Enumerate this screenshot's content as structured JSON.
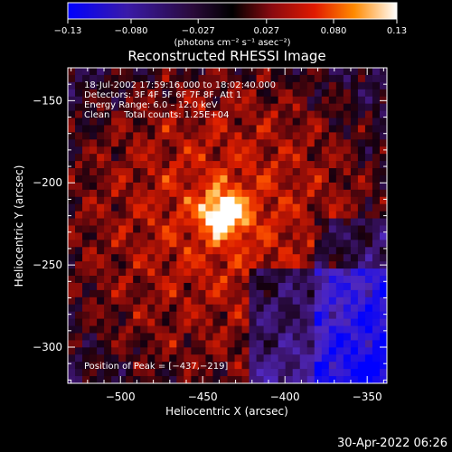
{
  "chart_data": {
    "type": "heatmap",
    "title": "Reconstructed RHESSI Image",
    "xlabel": "Heliocentric X (arcsec)",
    "ylabel": "Heliocentric Y (arcsec)",
    "xlim": [
      -532,
      -338
    ],
    "ylim": [
      -322,
      -130
    ],
    "x_ticks": [
      -500,
      -450,
      -400,
      -350
    ],
    "y_ticks": [
      -300,
      -250,
      -200,
      -150
    ],
    "x_tick_labels": [
      "−500",
      "−450",
      "−400",
      "−350"
    ],
    "y_tick_labels": [
      "−300",
      "−250",
      "−200",
      "−150"
    ],
    "colorbar": {
      "min": -0.13,
      "max": 0.13,
      "ticks": [
        -0.13,
        -0.08,
        -0.027,
        0.027,
        0.08,
        0.13
      ],
      "tick_labels": [
        "−0.13",
        "−0.080",
        "−0.027",
        "0.027",
        "0.080",
        "0.13"
      ],
      "unit_label": "(photons cm⁻² s⁻¹ asec⁻²)"
    },
    "info_lines": [
      "18-Jul-2002 17:59:16.000 to 18:02:40.000",
      "Detectors: 3F 4F 5F 6F 7F 8F, Att 1",
      "Energy Range: 6.0 – 12.0 keV",
      "Clean     Total counts: 1.25E+04"
    ],
    "peak_label": "Position of Peak = [−437,−219]",
    "peak": {
      "x": -437,
      "y": -219,
      "value": 0.13
    },
    "colors": {
      "low": "#0000ff",
      "mid": "#000000",
      "high": "#ffffff"
    }
  },
  "footer": {
    "timestamp": "30-Apr-2022 06:26"
  }
}
